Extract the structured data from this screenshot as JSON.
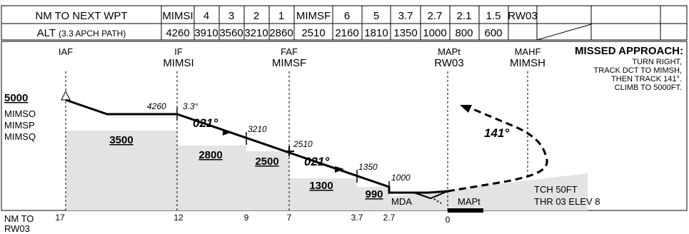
{
  "table": {
    "row1_label": "NM TO NEXT WPT",
    "row1": [
      "MIMSI",
      "4",
      "3",
      "2",
      "1",
      "MIMSF",
      "6",
      "5",
      "3.7",
      "2.7",
      "2.1",
      "1.5",
      "RW03",
      ""
    ],
    "row2_label_main": "ALT",
    "row2_label_sub": "(3.3 APCH PATH)",
    "row2": [
      "4260",
      "3910",
      "3560",
      "3210",
      "2860",
      "2510",
      "2160",
      "1810",
      "1350",
      "1000",
      "800",
      "600",
      "",
      ""
    ]
  },
  "fixes": {
    "iaf": "IAF",
    "if_type": "IF",
    "if_name": "MIMSI",
    "faf_type": "FAF",
    "faf_name": "MIMSF",
    "mapt_type": "MAPt",
    "mapt_name": "RW03",
    "mahf_type": "MAHF",
    "mahf_name": "MIMSH"
  },
  "missed": {
    "title": "MISSED APPROACH:",
    "lines": [
      "TURN RIGHT,",
      "TRACK DCT TO MIMSH,",
      "THEN TRACK 141°.",
      "CLIMB TO 5000FT."
    ],
    "course": "141°"
  },
  "left": {
    "alt": "5000",
    "holds": [
      "MIMSO",
      "MIMSP",
      "MIMSQ"
    ]
  },
  "profile": {
    "alt_4260": "4260",
    "angle": "3.3°",
    "course": "021°",
    "alt_3210": "3210",
    "alt_2510": "2510",
    "alt_1350": "1350",
    "alt_1000": "1000",
    "mda": "MDA",
    "mapt": "MAPt",
    "tch": "TCH 50FT",
    "thr": "THR 03 ELEV 8"
  },
  "msa_values": [
    "3500",
    "2800",
    "2500",
    "1300",
    "990"
  ],
  "axis": {
    "label_line1": "NM TO",
    "label_line2": "RW03",
    "ticks": [
      "17",
      "12",
      "9",
      "7",
      "3.7",
      "2.7",
      "0"
    ]
  },
  "colors": {
    "terrain": "#e3e3e3",
    "line": "#000000"
  }
}
